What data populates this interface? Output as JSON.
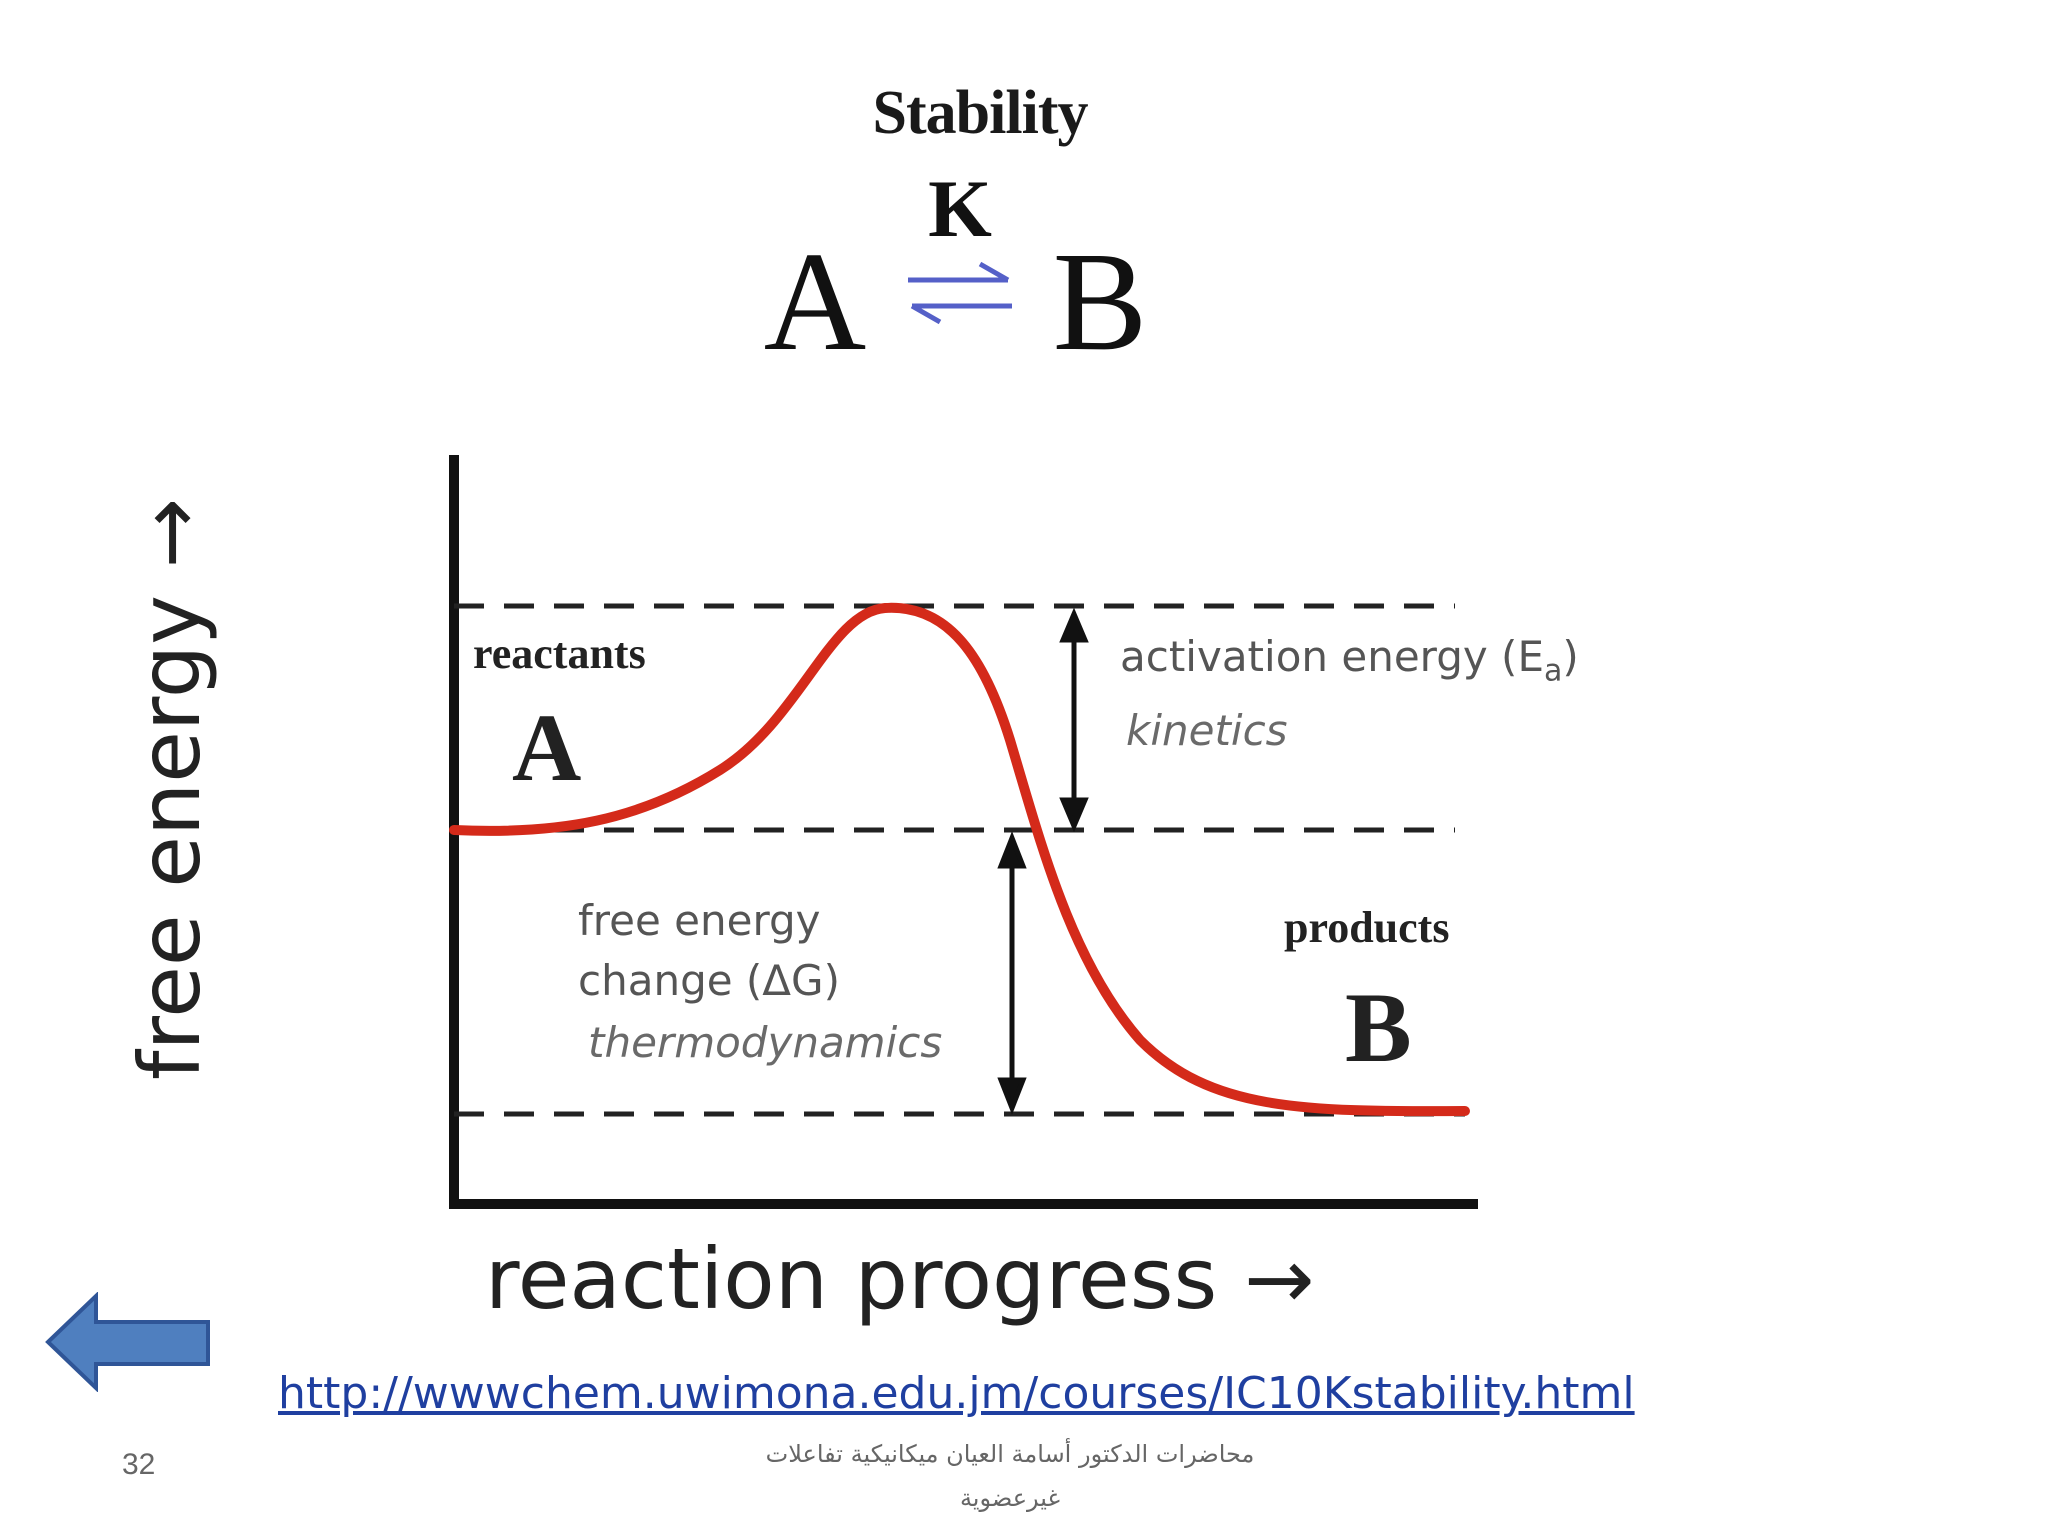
{
  "slide": {
    "title": "Stability",
    "equation": {
      "left": "A",
      "constant": "K",
      "right": "B",
      "arrow_color": "#5560c8"
    },
    "diagram": {
      "y_axis_label": "free energy →",
      "x_axis_label": "reaction progress →",
      "reactants_label": "reactants",
      "reactants_symbol": "A",
      "products_label": "products",
      "products_symbol": "B",
      "activation_label": "activation energy (E",
      "activation_sub": "a",
      "activation_close": ")",
      "kinetics_label": "kinetics",
      "dg_line1": "free energy",
      "dg_line2": "change (ΔG)",
      "thermo_label": "thermodynamics",
      "curve_color": "#d42a1a"
    },
    "source_link": "http://wwwchem.uwimona.edu.jm/courses/IC10Kstability.html",
    "slide_number": "32",
    "footer_line1": "محاضرات الدكتور أسامة العيان ميكانيكية تفاعلات",
    "footer_line2": "غيرعضوية",
    "back_button_color": "#4f7fbf"
  }
}
